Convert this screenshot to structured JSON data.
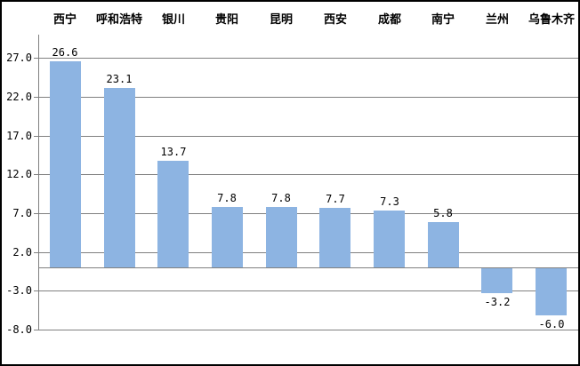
{
  "chart_data": {
    "type": "bar",
    "title": "",
    "xlabel": "",
    "ylabel": "",
    "categories": [
      "西宁",
      "呼和浩特",
      "银川",
      "贵阳",
      "昆明",
      "西安",
      "成都",
      "南宁",
      "兰州",
      "乌鲁木齐"
    ],
    "values": [
      26.6,
      23.1,
      13.7,
      7.8,
      7.8,
      7.7,
      7.3,
      5.8,
      -3.2,
      -6.0
    ],
    "value_labels": [
      "26.6",
      "23.1",
      "13.7",
      "7.8",
      "7.8",
      "7.7",
      "7.3",
      "5.8",
      "-3.2",
      "-6.0"
    ],
    "y_ticks": [
      27.0,
      22.0,
      17.0,
      12.0,
      7.0,
      2.0,
      -3.0,
      -8.0
    ],
    "y_tick_labels": [
      "27.0",
      "22.0",
      "17.0",
      "12.0",
      "7.0",
      "2.0",
      "-3.0",
      "-8.0"
    ],
    "ylim": [
      -8,
      30
    ],
    "baseline_value": 0,
    "grid": true,
    "legend_position": "none",
    "category_label_position": "top",
    "colors": {
      "bar_fill": "#8DB4E2",
      "gridline": "#808080",
      "axis": "#808080",
      "text": "#000000",
      "frame_border": "#000000",
      "background": "#FFFFFF"
    }
  }
}
